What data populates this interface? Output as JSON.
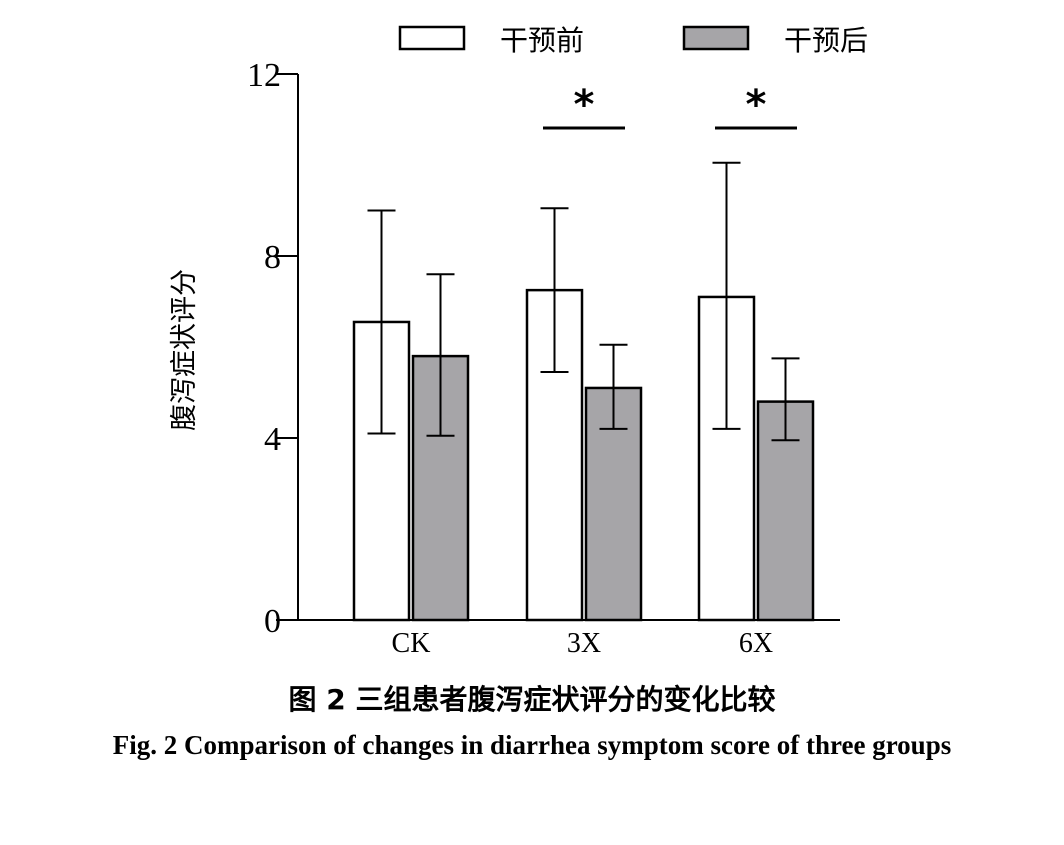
{
  "chart_data": {
    "type": "bar",
    "categories": [
      "CK",
      "3X",
      "6X"
    ],
    "series": [
      {
        "name": "干预前",
        "values": [
          6.55,
          7.25,
          7.1
        ],
        "error_low": [
          4.1,
          5.45,
          4.2
        ],
        "error_high": [
          9.0,
          9.05,
          10.05
        ],
        "color": "#ffffff"
      },
      {
        "name": "干预后",
        "values": [
          5.8,
          5.1,
          4.8
        ],
        "error_low": [
          4.05,
          4.2,
          3.95
        ],
        "error_high": [
          7.6,
          6.05,
          5.75
        ],
        "color": "#a6a5a8"
      }
    ],
    "ylabel": "腹泻症状评分",
    "xlabel": "",
    "ylim": [
      0,
      12
    ],
    "yticks": [
      "0",
      "4",
      "8",
      "12"
    ],
    "legend_position": "top",
    "grid": false,
    "significance": [
      {
        "category": "3X",
        "label": "*"
      },
      {
        "category": "6X",
        "label": "*"
      }
    ]
  },
  "caption": {
    "cn": "图 2 三组患者腹泻症状评分的变化比较",
    "en": "Fig. 2 Comparison of changes in diarrhea symptom score of three groups"
  }
}
